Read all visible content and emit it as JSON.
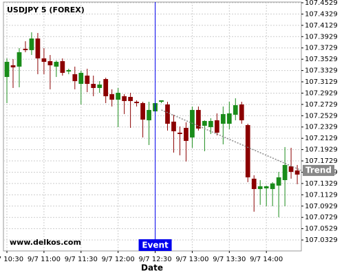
{
  "chart_data": {
    "type": "candlestick",
    "title": "USDJPY 5 (FOREX)",
    "x_label": "Date",
    "watermark": "www.delkos.com",
    "open": [
      107.3215,
      107.3422,
      107.3398,
      107.3714,
      107.369,
      107.3896,
      107.3544,
      107.3495,
      107.3398,
      107.3495,
      107.3312,
      107.3264,
      107.3093,
      107.3239,
      107.3093,
      107.302,
      107.3178,
      107.2911,
      107.2813,
      107.2874,
      107.2862,
      107.2776,
      107.2752,
      107.2448,
      107.2606,
      107.2776,
      107.2728,
      107.2424,
      107.2229,
      107.2314,
      107.2144,
      107.2631,
      107.2351,
      107.2327,
      107.2448,
      107.2387,
      107.2387,
      107.2546,
      107.2728,
      107.2363,
      107.1414,
      107.1231,
      107.1243,
      107.1231,
      107.1292,
      107.1389,
      107.1633,
      107.156
    ],
    "high": [
      107.3544,
      107.3531,
      107.3726,
      107.3848,
      107.4006,
      107.3994,
      107.3726,
      107.3604,
      107.3507,
      107.3544,
      107.3361,
      107.3398,
      107.3325,
      107.3361,
      107.3239,
      107.3142,
      107.3203,
      107.2996,
      107.302,
      107.2911,
      107.2935,
      107.2801,
      107.2776,
      107.2776,
      107.2838,
      107.2801,
      107.2776,
      107.2546,
      107.2339,
      107.2412,
      107.2692,
      107.2692,
      107.2448,
      107.2485,
      107.257,
      107.2692,
      107.2776,
      107.2838,
      107.2776,
      107.2387,
      107.1475,
      107.1389,
      107.1292,
      107.1353,
      107.1535,
      107.1974,
      107.1961,
      107.1657
    ],
    "low": [
      107.2752,
      107.302,
      107.3032,
      107.3653,
      107.3604,
      107.3264,
      107.3264,
      107.2996,
      107.3215,
      107.3239,
      107.3264,
      107.2996,
      107.2728,
      107.2947,
      107.2874,
      107.2935,
      107.2752,
      107.2692,
      107.2327,
      107.2558,
      107.2314,
      107.2692,
      107.2144,
      107.201,
      107.2327,
      107.2752,
      107.2266,
      107.1876,
      107.1828,
      107.1718,
      107.1961,
      107.2266,
      107.19,
      107.2205,
      107.2181,
      107.2022,
      107.229,
      107.2448,
      107.2387,
      107.1353,
      107.083,
      107.0951,
      107.0927,
      107.0927,
      107.0732,
      107.0927,
      107.1414,
      107.1316
    ],
    "close": [
      107.3483,
      107.3385,
      107.3653,
      107.369,
      107.3896,
      107.3544,
      107.3483,
      107.3422,
      107.3483,
      107.3288,
      107.3337,
      107.3142,
      107.3288,
      107.3093,
      107.302,
      107.3081,
      107.2874,
      107.2813,
      107.2935,
      107.2789,
      107.2789,
      107.2752,
      107.246,
      107.2631,
      107.2752,
      107.2801,
      107.2387,
      107.2254,
      107.2205,
      107.2083,
      107.2631,
      107.2302,
      107.2436,
      107.2436,
      107.2229,
      107.2558,
      107.257,
      107.2716,
      107.2448,
      107.1438,
      107.1231,
      107.128,
      107.128,
      107.1329,
      107.1438,
      107.1657,
      107.1535,
      107.1487
    ],
    "up_color": "#1a8c1a",
    "down_color": "#8b0000",
    "xlim": [
      -0.56,
      47.66
    ],
    "xticks": [
      {
        "value": 0,
        "label": "9/7 10:30"
      },
      {
        "value": 6,
        "label": "9/7 11:00"
      },
      {
        "value": 12,
        "label": "9/7 11:30"
      },
      {
        "value": 18,
        "label": "9/7 12:00"
      },
      {
        "value": 24,
        "label": "9/7 12:30"
      },
      {
        "value": 30,
        "label": "9/7 13:00"
      },
      {
        "value": 36,
        "label": "9/7 13:30"
      },
      {
        "value": 42,
        "label": "9/7 14:00"
      }
    ],
    "ylim": [
      107.0135,
      107.4541
    ],
    "yticks": [
      107.0329,
      107.0529,
      107.0729,
      107.0929,
      107.1129,
      107.1329,
      107.1529,
      107.1729,
      107.1929,
      107.2129,
      107.2329,
      107.2529,
      107.2729,
      107.2929,
      107.3129,
      107.3329,
      107.3529,
      107.3729,
      107.3929,
      107.4129,
      107.4329,
      107.4529
    ],
    "grid": true,
    "event": {
      "label": "Event",
      "x": 24,
      "color": "#0000ee"
    },
    "trend": {
      "label": "Trend",
      "x": [
        25,
        47.66
      ],
      "y": [
        107.2631,
        107.156
      ],
      "color": "#888888"
    }
  }
}
